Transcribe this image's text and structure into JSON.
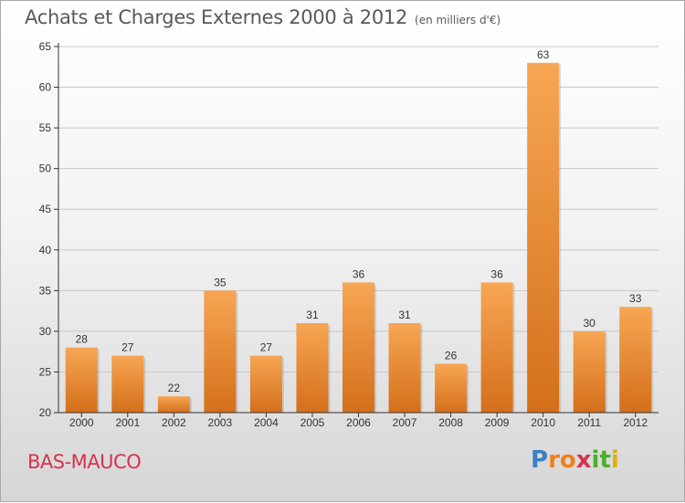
{
  "title": "Achats et Charges Externes 2000 à 2012",
  "subtitle": "(en milliers d'€)",
  "commune": "BAS-MAUCO",
  "logo": {
    "letters": [
      "P",
      "r",
      "o",
      "x",
      "i",
      "t",
      "i"
    ],
    "colors": [
      "#3b7fc4",
      "#f07f1e",
      "#f07f1e",
      "#d6334d",
      "#4caf2e",
      "#4caf2e",
      "#e0b000"
    ]
  },
  "colors": {
    "bar_top": "#f7a654",
    "bar_bottom": "#d46f1a",
    "grid": "#c8c8c8",
    "axis": "#333333"
  },
  "chart_data": {
    "type": "bar",
    "categories": [
      "2000",
      "2001",
      "2002",
      "2003",
      "2004",
      "2005",
      "2006",
      "2007",
      "2008",
      "2009",
      "2010",
      "2011",
      "2012"
    ],
    "values": [
      28,
      27,
      22,
      35,
      27,
      31,
      36,
      31,
      26,
      36,
      63,
      30,
      33
    ],
    "ylim": [
      20,
      65
    ],
    "yticks": [
      20,
      25,
      30,
      35,
      40,
      45,
      50,
      55,
      60,
      65
    ],
    "grid": true,
    "title": "Achats et Charges Externes 2000 à 2012",
    "xlabel": "",
    "ylabel": ""
  }
}
